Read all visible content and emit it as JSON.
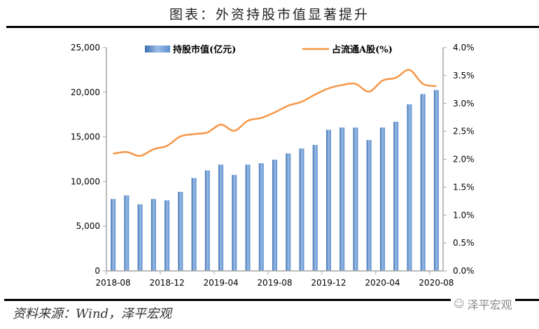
{
  "title": "图表：外资持股市值显著提升",
  "source": "资料来源：Wind，泽平宏观",
  "watermark": {
    "icon": "wechat-icon",
    "text": "泽平宏观"
  },
  "colors": {
    "bar": "#5b8fcf",
    "bar_dark": "#3b6fb0",
    "bar_light": "#a9c6ea",
    "line": "#f79646",
    "axis": "#a6a6a6"
  },
  "chart_data": {
    "type": "bar+line",
    "title": "图表：外资持股市值显著提升",
    "x": [
      "2018-08",
      "2018-09",
      "2018-10",
      "2018-11",
      "2018-12",
      "2019-01",
      "2019-02",
      "2019-03",
      "2019-04",
      "2019-05",
      "2019-06",
      "2019-07",
      "2019-08",
      "2019-09",
      "2019-10",
      "2019-11",
      "2019-12",
      "2020-01",
      "2020-02",
      "2020-03",
      "2020-04",
      "2020-05",
      "2020-06",
      "2020-07",
      "2020-08"
    ],
    "x_tick_labels": [
      "2018-08",
      "2018-12",
      "2019-04",
      "2019-08",
      "2019-12",
      "2020-04",
      "2020-08"
    ],
    "series": [
      {
        "name": "持股市值(亿元)",
        "type": "bar",
        "axis": "left",
        "values": [
          8050,
          8450,
          7450,
          8050,
          7900,
          8850,
          10400,
          11250,
          11900,
          10750,
          11900,
          12050,
          12450,
          13150,
          13700,
          14100,
          15800,
          16050,
          16050,
          14650,
          16050,
          16700,
          18650,
          19800,
          20250
        ]
      },
      {
        "name": "占流通A股(%)",
        "type": "line",
        "axis": "right",
        "values": [
          2.1,
          2.13,
          2.06,
          2.18,
          2.24,
          2.41,
          2.45,
          2.48,
          2.62,
          2.51,
          2.69,
          2.74,
          2.84,
          2.96,
          3.03,
          3.16,
          3.27,
          3.33,
          3.35,
          3.21,
          3.41,
          3.46,
          3.6,
          3.35,
          3.31
        ]
      }
    ],
    "y_left": {
      "range": [
        0,
        25000
      ],
      "ticks": [
        0,
        5000,
        10000,
        15000,
        20000,
        25000
      ],
      "tick_labels": [
        "0",
        "5,000",
        "10,000",
        "15,000",
        "20,000",
        "25,000"
      ]
    },
    "y_right": {
      "range": [
        0,
        4.0
      ],
      "ticks": [
        0,
        0.5,
        1.0,
        1.5,
        2.0,
        2.5,
        3.0,
        3.5,
        4.0
      ],
      "tick_labels": [
        "0.0%",
        "0.5%",
        "1.0%",
        "1.5%",
        "2.0%",
        "2.5%",
        "3.0%",
        "3.5%",
        "4.0%"
      ]
    },
    "legend": {
      "placement": "top",
      "entries": [
        "持股市值(亿元)",
        "占流通A股(%)"
      ]
    },
    "grid": false
  }
}
